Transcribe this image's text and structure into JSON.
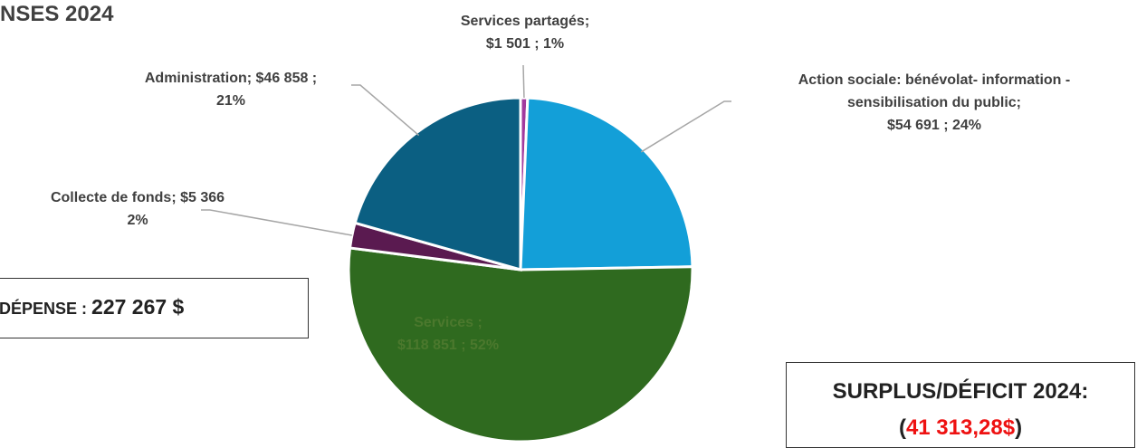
{
  "title": "NSES 2024",
  "chart_data": {
    "type": "pie",
    "slices": [
      {
        "name": "Services partagés",
        "value": 1501,
        "value_label": "$1 501",
        "percent_label": "1%",
        "color": "#a23a9e"
      },
      {
        "name": "Action sociale: bénévolat- information - sensibilisation du public",
        "value": 54691,
        "value_label": "$54 691",
        "percent_label": "24%",
        "color": "#139fd8"
      },
      {
        "name": "Services",
        "value": 118851,
        "value_label": "$118 851",
        "percent_label": "52%",
        "color": "#2f6a1f"
      },
      {
        "name": "Collecte de fonds",
        "value": 5366,
        "value_label": "$5 366",
        "percent_label": "2%",
        "color": "#5a1a50"
      },
      {
        "name": "Administration",
        "value": 46858,
        "value_label": "$46 858",
        "percent_label": "21%",
        "color": "#0b5f82"
      }
    ],
    "labels": {
      "services_partages": [
        "Services partagés;",
        "$1 501 ; 1%"
      ],
      "action_sociale": [
        "Action sociale: bénévolat- information -",
        "sensibilisation du public;",
        "$54 691 ; 24%"
      ],
      "services": [
        "Services ;",
        "$118 851 ; 52%"
      ],
      "collecte": [
        "Collecte de fonds; $5 366",
        "2%"
      ],
      "administration": [
        "Administration; $46 858 ;",
        "21%"
      ]
    }
  },
  "total_box": {
    "label": "DÉPENSE : ",
    "amount": "227 267 $"
  },
  "surplus_box": {
    "label": "SURPLUS/DÉFICIT 2024:",
    "open": "(",
    "amount": "41 313,28$",
    "close": ")"
  }
}
